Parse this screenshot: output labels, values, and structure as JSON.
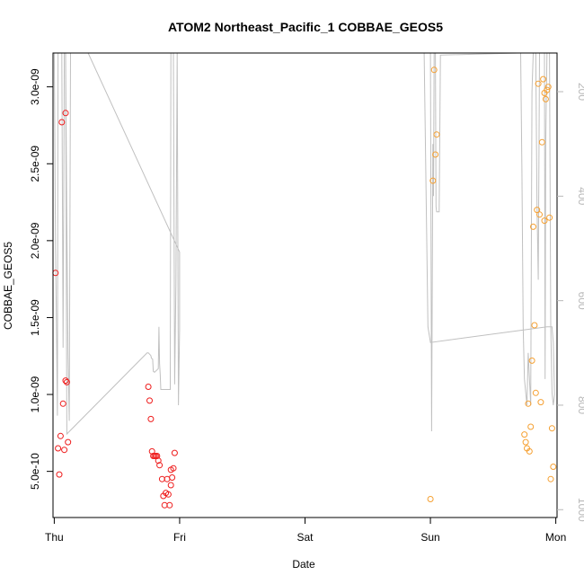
{
  "chart_data": {
    "type": "scatter",
    "title": "ATOM2 Northeast_Pacific_1 COBBAE_GEOS5",
    "xlabel": "Date",
    "ylabel": "COBBAE_GEOS5",
    "y2label": "",
    "x_is_time": true,
    "xlim": [
      -0.01,
      4.01
    ],
    "ylim": [
      2e-10,
      3.22e-09
    ],
    "y2lim": [
      1015,
      126
    ],
    "y2_reversed": true,
    "x_ticks": [
      {
        "value": 0,
        "label": "Thu"
      },
      {
        "value": 1,
        "label": "Fri"
      },
      {
        "value": 2,
        "label": "Sat"
      },
      {
        "value": 3,
        "label": "Sun"
      },
      {
        "value": 4,
        "label": "Mon"
      }
    ],
    "y_ticks": [
      {
        "value": 5e-10,
        "label": "5.0e-10"
      },
      {
        "value": 1e-09,
        "label": "1.0e-09"
      },
      {
        "value": 1.5e-09,
        "label": "1.5e-09"
      },
      {
        "value": 2e-09,
        "label": "2.0e-09"
      },
      {
        "value": 2.5e-09,
        "label": "2.5e-09"
      },
      {
        "value": 3e-09,
        "label": "3.0e-09"
      }
    ],
    "y2_ticks": [
      {
        "value": 200,
        "label": "200"
      },
      {
        "value": 400,
        "label": "400"
      },
      {
        "value": 600,
        "label": "600"
      },
      {
        "value": 800,
        "label": "800"
      },
      {
        "value": 1000,
        "label": "1000"
      }
    ],
    "grid": false,
    "colors": {
      "red": "#ee1c1c",
      "orange": "#f5a032",
      "line": "#c0c0c0",
      "frame": "#000000",
      "right_axis": "#b8b8b8"
    },
    "series": [
      {
        "color": "#ee1c1c",
        "points": [
          [
            0.01,
            1.79e-09
          ],
          [
            0.03,
            6.5e-10
          ],
          [
            0.04,
            4.8e-10
          ],
          [
            0.05,
            7.3e-10
          ],
          [
            0.06,
            2.77e-09
          ],
          [
            0.07,
            9.4e-10
          ],
          [
            0.08,
            6.4e-10
          ],
          [
            0.09,
            1.09e-09
          ],
          [
            0.09,
            2.83e-09
          ],
          [
            0.1,
            1.08e-09
          ],
          [
            0.11,
            6.9e-10
          ],
          [
            0.75,
            1.05e-09
          ],
          [
            0.76,
            9.6e-10
          ],
          [
            0.77,
            8.4e-10
          ],
          [
            0.78,
            6.3e-10
          ],
          [
            0.79,
            6e-10
          ],
          [
            0.8,
            6e-10
          ],
          [
            0.81,
            6e-10
          ],
          [
            0.82,
            6e-10
          ],
          [
            0.83,
            5.7e-10
          ],
          [
            0.84,
            5.4e-10
          ],
          [
            0.86,
            4.5e-10
          ],
          [
            0.87,
            3.4e-10
          ],
          [
            0.88,
            2.8e-10
          ],
          [
            0.89,
            3.6e-10
          ],
          [
            0.9,
            4.5e-10
          ],
          [
            0.91,
            3.5e-10
          ],
          [
            0.92,
            2.8e-10
          ],
          [
            0.93,
            4.1e-10
          ],
          [
            0.93,
            5.1e-10
          ],
          [
            0.94,
            4.6e-10
          ],
          [
            0.95,
            5.2e-10
          ],
          [
            0.96,
            6.2e-10
          ]
        ]
      },
      {
        "color": "#f5a032",
        "points": [
          [
            3.0,
            3.2e-10
          ],
          [
            3.02,
            2.39e-09
          ],
          [
            3.03,
            3.11e-09
          ],
          [
            3.04,
            2.56e-09
          ],
          [
            3.05,
            2.69e-09
          ],
          [
            3.75,
            7.4e-10
          ],
          [
            3.76,
            6.9e-10
          ],
          [
            3.77,
            6.5e-10
          ],
          [
            3.78,
            9.4e-10
          ],
          [
            3.79,
            6.3e-10
          ],
          [
            3.8,
            7.9e-10
          ],
          [
            3.81,
            1.22e-09
          ],
          [
            3.82,
            2.09e-09
          ],
          [
            3.83,
            1.45e-09
          ],
          [
            3.84,
            1.01e-09
          ],
          [
            3.85,
            2.2e-09
          ],
          [
            3.86,
            3.02e-09
          ],
          [
            3.87,
            2.17e-09
          ],
          [
            3.88,
            9.5e-10
          ],
          [
            3.89,
            2.64e-09
          ],
          [
            3.9,
            3.05e-09
          ],
          [
            3.91,
            2.96e-09
          ],
          [
            3.91,
            2.13e-09
          ],
          [
            3.92,
            2.92e-09
          ],
          [
            3.93,
            2.98e-09
          ],
          [
            3.94,
            3e-09
          ],
          [
            3.95,
            2.15e-09
          ],
          [
            3.96,
            4.5e-10
          ],
          [
            3.97,
            7.8e-10
          ],
          [
            3.98,
            5.3e-10
          ]
        ]
      }
    ],
    "altitude_line": [
      [
        0.0,
        126
      ],
      [
        0.01,
        500
      ],
      [
        0.02,
        700
      ],
      [
        0.025,
        820
      ],
      [
        0.03,
        126
      ],
      [
        0.06,
        126
      ],
      [
        0.07,
        690
      ],
      [
        0.08,
        126
      ],
      [
        0.09,
        126
      ],
      [
        0.1,
        450
      ],
      [
        0.11,
        700
      ],
      [
        0.12,
        830
      ],
      [
        0.13,
        126
      ],
      [
        0.27,
        126
      ],
      [
        1.0,
        507
      ],
      [
        1.0,
        655
      ],
      [
        0.99,
        800
      ],
      [
        0.98,
        126
      ],
      [
        0.97,
        570
      ],
      [
        0.96,
        760
      ],
      [
        0.95,
        126
      ],
      [
        0.93,
        126
      ],
      [
        0.925,
        770
      ],
      [
        0.92,
        770
      ],
      [
        0.86,
        770
      ],
      [
        0.85,
        770
      ],
      [
        0.845,
        740
      ],
      [
        0.84,
        720
      ],
      [
        0.835,
        650
      ],
      [
        0.83,
        730
      ],
      [
        0.8,
        737
      ],
      [
        0.79,
        735
      ],
      [
        0.785,
        712
      ],
      [
        0.775,
        710
      ],
      [
        0.77,
        705
      ],
      [
        0.75,
        700
      ],
      [
        0.74,
        700
      ],
      [
        0.1,
        855
      ],
      [
        0.09,
        126
      ],
      [
        3.0,
        126
      ],
      [
        3.01,
        850
      ],
      [
        3.02,
        300
      ],
      [
        3.025,
        400
      ],
      [
        3.03,
        126
      ],
      [
        3.04,
        126
      ],
      [
        3.045,
        420
      ],
      [
        3.05,
        430
      ],
      [
        3.07,
        430
      ],
      [
        3.08,
        130
      ],
      [
        3.7,
        126
      ],
      [
        3.72,
        126
      ],
      [
        3.73,
        350
      ],
      [
        3.74,
        650
      ],
      [
        3.75,
        750
      ],
      [
        3.77,
        800
      ],
      [
        3.78,
        700
      ],
      [
        3.79,
        750
      ],
      [
        3.8,
        800
      ],
      [
        3.81,
        200
      ],
      [
        3.82,
        126
      ],
      [
        3.84,
        126
      ],
      [
        3.85,
        420
      ],
      [
        3.86,
        560
      ],
      [
        3.87,
        126
      ],
      [
        3.88,
        126
      ],
      [
        3.89,
        126
      ],
      [
        3.91,
        126
      ],
      [
        3.915,
        750
      ],
      [
        3.92,
        300
      ],
      [
        3.93,
        126
      ],
      [
        3.95,
        126
      ],
      [
        3.96,
        650
      ],
      [
        3.97,
        776
      ],
      [
        3.98,
        800
      ],
      [
        3.99,
        780
      ],
      [
        3.98,
        680
      ],
      [
        3.97,
        650
      ],
      [
        3.95,
        650
      ],
      [
        3.93,
        650
      ],
      [
        3.0,
        680
      ],
      [
        2.98,
        650
      ],
      [
        2.95,
        126
      ],
      [
        2.97,
        126
      ]
    ]
  }
}
